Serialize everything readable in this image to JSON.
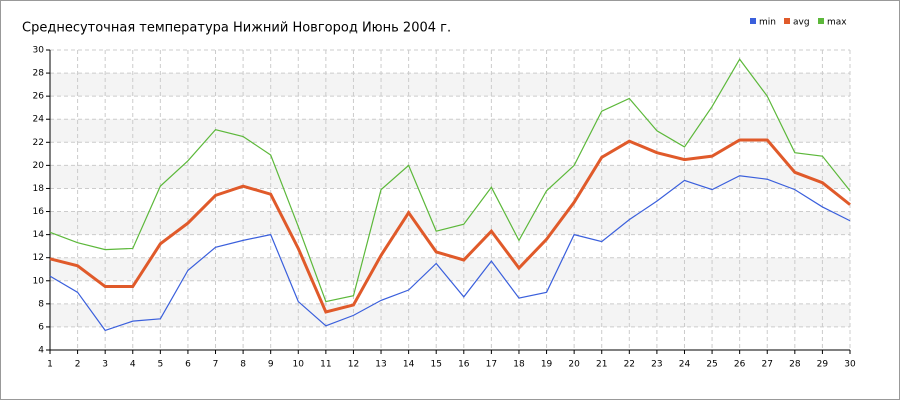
{
  "chart_data": {
    "type": "line",
    "title": "Среднесуточная температура Нижний Новгород  Июнь 2004 г.",
    "x": [
      1,
      2,
      3,
      4,
      5,
      6,
      7,
      8,
      9,
      10,
      11,
      12,
      13,
      14,
      15,
      16,
      17,
      18,
      19,
      20,
      21,
      22,
      23,
      24,
      25,
      26,
      27,
      28,
      29,
      30
    ],
    "xlim": [
      1,
      30
    ],
    "ylim": [
      4,
      30
    ],
    "yticks": [
      4,
      6,
      8,
      10,
      12,
      14,
      16,
      18,
      20,
      22,
      24,
      26,
      28,
      30
    ],
    "grid": true,
    "legend": "top-right",
    "series": [
      {
        "name": "min",
        "color": "#3a5fdc",
        "values": [
          10.4,
          9.0,
          5.7,
          6.5,
          6.7,
          10.9,
          12.9,
          13.5,
          14.0,
          8.2,
          6.1,
          7.0,
          8.3,
          9.2,
          11.5,
          8.6,
          11.7,
          8.5,
          9.0,
          14.0,
          13.4,
          15.3,
          16.9,
          18.7,
          17.9,
          19.1,
          18.8,
          17.9,
          16.4,
          15.2
        ]
      },
      {
        "name": "avg",
        "color": "#e05a2a",
        "values": [
          11.9,
          11.3,
          9.5,
          9.5,
          13.2,
          15.0,
          17.4,
          18.2,
          17.5,
          12.8,
          7.3,
          7.9,
          12.2,
          15.9,
          12.5,
          11.8,
          14.3,
          11.1,
          13.6,
          16.8,
          20.7,
          22.1,
          21.1,
          20.5,
          20.8,
          22.2,
          22.2,
          19.4,
          18.5,
          16.6
        ]
      },
      {
        "name": "max",
        "color": "#5cb83a",
        "values": [
          14.2,
          13.3,
          12.7,
          12.8,
          18.2,
          20.4,
          23.1,
          22.5,
          20.9,
          14.7,
          8.2,
          8.7,
          17.9,
          20.0,
          14.3,
          14.9,
          18.1,
          13.5,
          17.8,
          20.0,
          24.7,
          25.8,
          23.0,
          21.6,
          25.1,
          29.2,
          26.0,
          21.1,
          20.8,
          17.8
        ]
      }
    ]
  }
}
